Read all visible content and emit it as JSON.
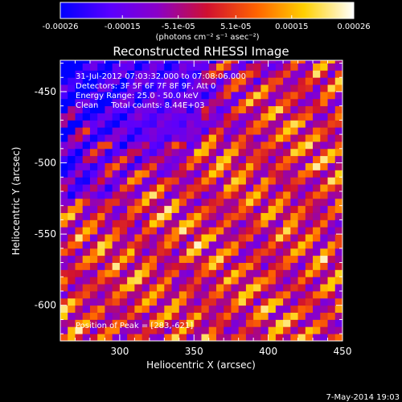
{
  "chart_data": {
    "type": "heatmap",
    "title": "Reconstructed RHESSI Image",
    "xlabel": "Heliocentric X (arcsec)",
    "ylabel": "Heliocentric Y (arcsec)",
    "xlim": [
      260,
      450
    ],
    "ylim": [
      -625,
      -428
    ],
    "x_ticks": [
      300,
      350,
      400,
      450
    ],
    "y_ticks": [
      -600,
      -550,
      -500,
      -450
    ],
    "x_tick_labels": [
      "300",
      "350",
      "400",
      "450"
    ],
    "y_tick_labels": [
      "-600",
      "-550",
      "-500",
      "-450"
    ],
    "colorbar": {
      "range": [
        -0.00026,
        0.00026
      ],
      "ticks": [
        -0.00026,
        -0.00015,
        -5.1e-05,
        5.1e-05,
        0.00015,
        0.00026
      ],
      "tick_labels": [
        "-0.00026",
        "-0.00015",
        "-5.1e-05",
        "5.1e-05",
        "0.00015",
        "0.00026"
      ],
      "unit_text": "(photons cm⁻² s⁻¹ asec⁻²)",
      "colors": [
        "#0000ff",
        "#5a00ff",
        "#8a00c8",
        "#d01030",
        "#ff6400",
        "#ffd000",
        "#ffffff"
      ]
    },
    "annotations": [
      "31-Jul-2012 07:03:32.000 to 07:08:06.000",
      "Detectors: 3F 5F 6F 7F 8F 9F, Att 0",
      "Energy Range: 25.0 - 50.0 keV",
      "Clean     Total counts: 8.44E+03"
    ],
    "peak_text": "Position of Peak = [283,-621]",
    "peak": [
      283,
      -621
    ],
    "pixel_size_arcsec": 5,
    "stripe_angle_note": "diagonal fringe pattern"
  },
  "footer": {
    "date": "7-May-2014 19:03"
  }
}
